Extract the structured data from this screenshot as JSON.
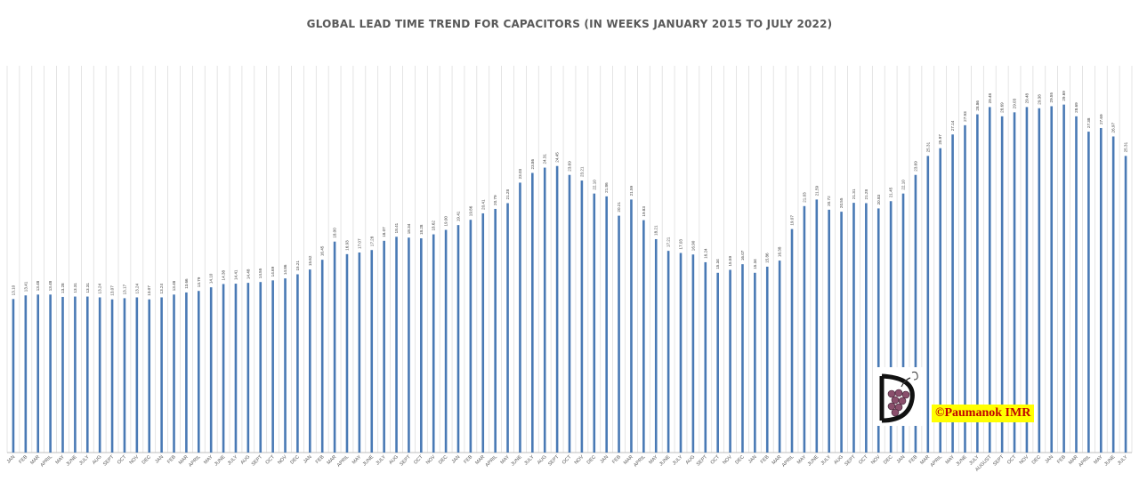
{
  "chart_data": {
    "type": "bar",
    "title": "GLOBAL LEAD TIME TREND FOR CAPACITORS (IN WEEKS JANUARY 2015 TO JULY 2022)",
    "xlabel": "",
    "ylabel": "",
    "ylim": [
      0,
      33
    ],
    "grid": true,
    "bar_color": "#4a7ab5",
    "categories": [
      "JAN",
      "FEB",
      "MAR",
      "APRIL",
      "MAY",
      "JUNE",
      "JULY",
      "AUG",
      "SEPT",
      "OCT",
      "NOV",
      "DEC",
      "JAN",
      "FEB",
      "MAR",
      "APRIL",
      "MAY",
      "JUNE",
      "JULY",
      "AUG",
      "SEPT",
      "OCT",
      "NOV",
      "DEC",
      "JAN",
      "FEB",
      "MAR",
      "APRIL",
      "MAY",
      "JUNE",
      "JULY",
      "AUG",
      "SEPT",
      "OCT",
      "NOV",
      "DEC",
      "JAN",
      "FEB",
      "MAR",
      "APRIL",
      "MAY",
      "JUNE",
      "JULY",
      "AUG",
      "SEPT",
      "OCT",
      "NOV",
      "DEC",
      "JAN",
      "FEB",
      "MAR",
      "APRIL",
      "MAY",
      "JUNE",
      "JULY",
      "AUG",
      "SEPT",
      "OCT",
      "NOV",
      "DEC",
      "JAN",
      "FEB",
      "MAR",
      "APRIL",
      "MAY",
      "JUNE",
      "JULY",
      "AUG",
      "SEPT",
      "OCT",
      "NOV",
      "DEC",
      "JAN",
      "FEB",
      "MAR",
      "APRIL",
      "MAY",
      "JUNE",
      "JULY",
      "AUGUST",
      "SEPT",
      "OCT",
      "NOV",
      "DEC",
      "JAN",
      "FEB",
      "MAR",
      "APRIL",
      "MAY",
      "JUNE",
      "JULY"
    ],
    "values": [
      13.1,
      13.41,
      13.48,
      13.48,
      13.28,
      13.31,
      13.31,
      13.24,
      13.07,
      13.17,
      13.24,
      13.07,
      13.24,
      13.48,
      13.66,
      13.79,
      14.1,
      14.38,
      14.41,
      14.48,
      14.55,
      14.69,
      14.86,
      15.21,
      15.62,
      16.45,
      18.0,
      16.93,
      17.07,
      17.28,
      18.07,
      18.41,
      18.34,
      18.28,
      18.62,
      19.0,
      19.41,
      19.86,
      20.41,
      20.79,
      21.28,
      23.03,
      23.86,
      24.31,
      24.45,
      23.69,
      23.21,
      22.1,
      21.86,
      20.21,
      21.59,
      19.83,
      18.21,
      17.21,
      17.03,
      16.9,
      16.24,
      15.34,
      15.59,
      16.07,
      15.34,
      15.86,
      16.38,
      19.07,
      21.03,
      21.59,
      20.72,
      20.55,
      21.31,
      21.28,
      20.83,
      21.45,
      22.1,
      23.69,
      25.31,
      25.97,
      27.14,
      27.93,
      28.86,
      29.48,
      28.69,
      29.03,
      29.48,
      29.38,
      29.55,
      29.69,
      28.69,
      27.38,
      27.69,
      26.97,
      25.31
    ],
    "value_labels": [
      "13.10",
      "13.41",
      "13.48",
      "13.48",
      "13.28",
      "13.31",
      "13.31",
      "13.24",
      "13.07",
      "13.17",
      "13.24",
      "13.07",
      "13.24",
      "13.48",
      "13.66",
      "13.79",
      "14.10",
      "14.38",
      "14.41",
      "14.48",
      "14.55",
      "14.69",
      "14.86",
      "15.21",
      "15.62",
      "16.45",
      "18.00",
      "16.93",
      "17.07",
      "17.28",
      "18.07",
      "18.41",
      "18.34",
      "18.28",
      "18.62",
      "19.00",
      "19.41",
      "19.86",
      "20.41",
      "20.79",
      "21.28",
      "23.03",
      "23.86",
      "24.31",
      "24.45",
      "23.69",
      "23.21",
      "22.10",
      "21.86",
      "20.21",
      "21.59",
      "19.83",
      "18.21",
      "17.21",
      "17.03",
      "16.90",
      "16.24",
      "15.34",
      "15.59",
      "16.07",
      "15.34",
      "15.86",
      "16.38",
      "19.07",
      "21.03",
      "21.59",
      "20.72",
      "20.55",
      "21.31",
      "21.28",
      "20.83",
      "21.45",
      "22.10",
      "23.69",
      "25.31",
      "25.97",
      "27.14",
      "27.93",
      "28.86",
      "29.48",
      "28.69",
      "29.03",
      "29.48",
      "29.38",
      "29.55",
      "29.69",
      "28.69",
      "27.38",
      "27.69",
      "26.97",
      "25.31"
    ]
  },
  "watermark": {
    "text": "©Paumanok IMR",
    "bg_color": "#ffff00",
    "text_color": "#c00000"
  }
}
